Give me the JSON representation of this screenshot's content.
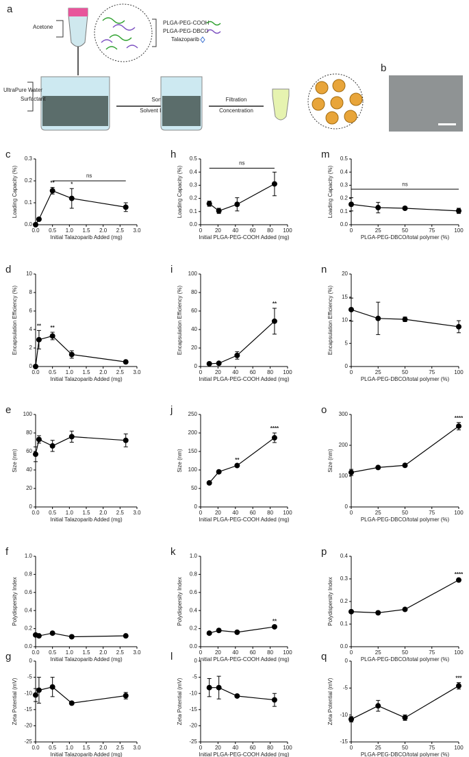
{
  "schematic": {
    "panel_a": "a",
    "panel_b": "b",
    "acetone": "Acetone",
    "polymer1": "PLGA-PEG-COOH",
    "polymer2": "PLGA-PEG-DBCO",
    "drug": "Talazoparib",
    "water": "UltraPure Water",
    "surfactant": "Surfactant",
    "step1a": "Sonication",
    "step1b": "Solvent Evaporation",
    "step2a": "Filtration",
    "step2b": "Concentration"
  },
  "chart_data": [
    {
      "type": "line",
      "panel": "c",
      "ylabel": "Loading Capacity (%)",
      "xlabel": "Initial Talazoparib Added (mg)",
      "x": [
        0,
        0.1,
        0.5,
        1.07,
        2.67
      ],
      "values": [
        0,
        0.025,
        0.155,
        0.12,
        0.08
      ],
      "errors": [
        0,
        0.005,
        0.015,
        0.045,
        0.02
      ],
      "xlim": [
        0,
        3
      ],
      "xticks": [
        {
          "value": 0,
          "label": "0.0"
        },
        {
          "value": 0.5,
          "label": "0.5"
        },
        {
          "value": 1,
          "label": "1.0"
        },
        {
          "value": 1.5,
          "label": "1.5"
        },
        {
          "value": 2,
          "label": "2.0"
        },
        {
          "value": 2.5,
          "label": "2.5"
        },
        {
          "value": 3,
          "label": "3.0"
        }
      ],
      "ylim": [
        0,
        0.3
      ],
      "yticks": [
        {
          "value": 0,
          "label": "0.0"
        },
        {
          "value": 0.1,
          "label": "0.1"
        },
        {
          "value": 0.2,
          "label": "0.2"
        },
        {
          "value": 0.3,
          "label": "0.3"
        }
      ],
      "annotations": [
        {
          "text": "**",
          "x": 0.5
        },
        {
          "text": "*",
          "x": 1.07
        }
      ],
      "bracket": {
        "text": "ns",
        "x": [
          0.5,
          2.67
        ],
        "y": 0.2
      }
    },
    {
      "type": "line",
      "panel": "d",
      "ylabel": "Encapsulation Efficiency (%)",
      "xlabel": "Initial Talazoparib Added (mg)",
      "x": [
        0,
        0.1,
        0.5,
        1.07,
        2.67
      ],
      "values": [
        0,
        2.9,
        3.3,
        1.3,
        0.5
      ],
      "errors": [
        0,
        1.0,
        0.4,
        0.4,
        0.1
      ],
      "xlim": [
        0,
        3
      ],
      "xticks": [
        {
          "value": 0,
          "label": "0.0"
        },
        {
          "value": 0.5,
          "label": "0.5"
        },
        {
          "value": 1,
          "label": "1.0"
        },
        {
          "value": 1.5,
          "label": "1.5"
        },
        {
          "value": 2,
          "label": "2.0"
        },
        {
          "value": 2.5,
          "label": "2.5"
        },
        {
          "value": 3,
          "label": "3.0"
        }
      ],
      "ylim": [
        0,
        10
      ],
      "yticks": [
        0,
        2,
        4,
        6,
        8,
        10
      ],
      "annotations": [
        {
          "text": "**",
          "x": 0.1
        },
        {
          "text": "**",
          "x": 0.5
        }
      ]
    },
    {
      "type": "line",
      "panel": "e",
      "ylabel": "Size (nm)",
      "xlabel": "Initial Talazoparib Added (mg)",
      "x": [
        0,
        0.1,
        0.5,
        1.07,
        2.67
      ],
      "values": [
        57,
        73,
        66,
        76,
        72
      ],
      "errors": [
        8,
        4,
        6,
        6,
        7
      ],
      "xlim": [
        0,
        3
      ],
      "xticks": [
        {
          "value": 0,
          "label": "0.0"
        },
        {
          "value": 0.5,
          "label": "0.5"
        },
        {
          "value": 1,
          "label": "1.0"
        },
        {
          "value": 1.5,
          "label": "1.5"
        },
        {
          "value": 2,
          "label": "2.0"
        },
        {
          "value": 2.5,
          "label": "2.5"
        },
        {
          "value": 3,
          "label": "3.0"
        }
      ],
      "ylim": [
        0,
        100
      ],
      "yticks": [
        0,
        20,
        40,
        60,
        80,
        100
      ]
    },
    {
      "type": "line",
      "panel": "f",
      "ylabel": "Polydispersity Index",
      "xlabel": "Initial Talazoparib Added (mg)",
      "x": [
        0,
        0.1,
        0.5,
        1.07,
        2.67
      ],
      "values": [
        0.13,
        0.12,
        0.15,
        0.11,
        0.12
      ],
      "errors": [
        0.005,
        0.005,
        0.005,
        0.005,
        0.005
      ],
      "xlim": [
        0,
        3
      ],
      "xticks": [
        {
          "value": 0,
          "label": "0.0"
        },
        {
          "value": 0.5,
          "label": "0.5"
        },
        {
          "value": 1,
          "label": "1.0"
        },
        {
          "value": 1.5,
          "label": "1.5"
        },
        {
          "value": 2,
          "label": "2.0"
        },
        {
          "value": 2.5,
          "label": "2.5"
        },
        {
          "value": 3,
          "label": "3.0"
        }
      ],
      "ylim": [
        0,
        1
      ],
      "yticks": [
        {
          "value": 0,
          "label": "0.0"
        },
        {
          "value": 0.2,
          "label": "0.2"
        },
        {
          "value": 0.4,
          "label": "0.4"
        },
        {
          "value": 0.6,
          "label": "0.6"
        },
        {
          "value": 0.8,
          "label": "0.8"
        },
        {
          "value": 1,
          "label": "1.0"
        }
      ]
    },
    {
      "type": "line",
      "panel": "g",
      "ylabel": "Zeta Potential (mV)",
      "xlabel": "Initial Talazoparib Added (mg)",
      "x": [
        0,
        0.1,
        0.5,
        1.07,
        2.67
      ],
      "values": [
        -10.5,
        -9,
        -8,
        -13,
        -10.7
      ],
      "errors": [
        2,
        4,
        3,
        0.3,
        1
      ],
      "xlim": [
        0,
        3
      ],
      "xticks": [
        {
          "value": 0,
          "label": "0.0"
        },
        {
          "value": 0.5,
          "label": "0.5"
        },
        {
          "value": 1,
          "label": "1.0"
        },
        {
          "value": 1.5,
          "label": "1.5"
        },
        {
          "value": 2,
          "label": "2.0"
        },
        {
          "value": 2.5,
          "label": "2.5"
        },
        {
          "value": 3,
          "label": "3.0"
        }
      ],
      "ylim": [
        -25,
        0
      ],
      "yticks": [
        0,
        -5,
        -10,
        -15,
        -20,
        -25
      ]
    },
    {
      "type": "line",
      "panel": "h",
      "ylabel": "Loading Capacity (%)",
      "xlabel": "Initial PLGA-PEG-COOH Added (mg)",
      "x": [
        10,
        21,
        42,
        85
      ],
      "values": [
        0.16,
        0.105,
        0.155,
        0.31
      ],
      "errors": [
        0.02,
        0.02,
        0.05,
        0.09
      ],
      "xlim": [
        0,
        100
      ],
      "xticks": [
        0,
        20,
        40,
        60,
        80,
        100
      ],
      "ylim": [
        0,
        0.5
      ],
      "yticks": [
        {
          "value": 0,
          "label": "0.0"
        },
        0.1,
        0.2,
        0.3,
        0.4,
        0.5
      ],
      "bracket": {
        "text": "ns",
        "x": [
          10,
          85
        ],
        "y": 0.43
      }
    },
    {
      "type": "line",
      "panel": "i",
      "ylabel": "Encapsulation Efficiency (%)",
      "xlabel": "Initial PLGA-PEG-COOH Added (mg)",
      "x": [
        10,
        21,
        42,
        85
      ],
      "values": [
        3,
        3.5,
        12,
        49
      ],
      "errors": [
        1,
        1,
        4,
        14
      ],
      "xlim": [
        0,
        100
      ],
      "xticks": [
        0,
        20,
        40,
        60,
        80,
        100
      ],
      "ylim": [
        0,
        100
      ],
      "yticks": [
        0,
        20,
        40,
        60,
        80,
        100
      ],
      "annotations": [
        {
          "text": "**",
          "x": 85
        }
      ]
    },
    {
      "type": "line",
      "panel": "j",
      "ylabel": "Size (nm)",
      "xlabel": "Initial PLGA-PEG-COOH Added (mg)",
      "x": [
        10,
        21,
        42,
        85
      ],
      "values": [
        65,
        95,
        112,
        187
      ],
      "errors": [
        3,
        3,
        3,
        13
      ],
      "xlim": [
        0,
        100
      ],
      "xticks": [
        0,
        20,
        40,
        60,
        80,
        100
      ],
      "ylim": [
        0,
        250
      ],
      "yticks": [
        0,
        50,
        100,
        150,
        200,
        250
      ],
      "annotations": [
        {
          "text": "**",
          "x": 42
        },
        {
          "text": "****",
          "x": 85
        }
      ]
    },
    {
      "type": "line",
      "panel": "k",
      "ylabel": "Polydispersity Index",
      "xlabel": "Initial PLGA-PEG-COOH Added (mg)",
      "x": [
        10,
        21,
        42,
        85
      ],
      "values": [
        0.15,
        0.18,
        0.16,
        0.22
      ],
      "errors": [
        0.005,
        0.005,
        0.005,
        0.01
      ],
      "xlim": [
        0,
        100
      ],
      "xticks": [
        0,
        20,
        40,
        60,
        80,
        100
      ],
      "ylim": [
        0,
        1
      ],
      "yticks": [
        {
          "value": 0,
          "label": "0.0"
        },
        {
          "value": 0.2,
          "label": "0.2"
        },
        {
          "value": 0.4,
          "label": "0.4"
        },
        {
          "value": 0.6,
          "label": "0.6"
        },
        {
          "value": 0.8,
          "label": "0.8"
        },
        {
          "value": 1,
          "label": "1.0"
        }
      ],
      "annotations": [
        {
          "text": "**",
          "x": 85
        }
      ]
    },
    {
      "type": "line",
      "panel": "l",
      "ylabel": "Zeta Potential (mV)",
      "xlabel": "Initial PLGA-PEG-COOH Added (mg)",
      "x": [
        10,
        21,
        42,
        85
      ],
      "values": [
        -8.2,
        -8.2,
        -10.8,
        -12
      ],
      "errors": [
        2.8,
        3.5,
        0.3,
        2
      ],
      "xlim": [
        0,
        100
      ],
      "xticks": [
        0,
        20,
        40,
        60,
        80,
        100
      ],
      "ylim": [
        -25,
        0
      ],
      "yticks": [
        0,
        -5,
        -10,
        -15,
        -20,
        -25
      ]
    },
    {
      "type": "line",
      "panel": "m",
      "ylabel": "Loading Capacity (%)",
      "xlabel": "PLGA-PEG-DBCO/total polymer (%)",
      "x": [
        0,
        25,
        50,
        100
      ],
      "values": [
        0.155,
        0.13,
        0.125,
        0.105
      ],
      "errors": [
        0.05,
        0.04,
        0.01,
        0.02
      ],
      "xlim": [
        0,
        100
      ],
      "xticks": [
        0,
        25,
        50,
        75,
        100
      ],
      "ylim": [
        0,
        0.5
      ],
      "yticks": [
        {
          "value": 0,
          "label": "0.0"
        },
        0.1,
        0.2,
        0.3,
        0.4,
        0.5
      ],
      "bracket": {
        "text": "ns",
        "x": [
          0,
          100
        ],
        "y": 0.27
      }
    },
    {
      "type": "line",
      "panel": "n",
      "ylabel": "Encapsulation Efficiency (%)",
      "xlabel": "PLGA-PEG-DBCO/total polymer (%)",
      "x": [
        0,
        25,
        50,
        100
      ],
      "values": [
        12.3,
        10.4,
        10.2,
        8.6
      ],
      "errors": [
        2.5,
        3.5,
        0.5,
        1.3
      ],
      "xlim": [
        0,
        100
      ],
      "xticks": [
        0,
        25,
        50,
        75,
        100
      ],
      "ylim": [
        0,
        20
      ],
      "yticks": [
        0,
        5,
        10,
        15,
        20
      ]
    },
    {
      "type": "line",
      "panel": "o",
      "ylabel": "Size (nm)",
      "xlabel": "PLGA-PEG-DBCO/total polymer (%)",
      "x": [
        0,
        25,
        50,
        100
      ],
      "values": [
        112,
        128,
        135,
        262
      ],
      "errors": [
        10,
        5,
        3,
        12
      ],
      "xlim": [
        0,
        100
      ],
      "xticks": [
        0,
        25,
        50,
        75,
        100
      ],
      "ylim": [
        0,
        300
      ],
      "yticks": [
        0,
        100,
        200,
        300
      ],
      "annotations": [
        {
          "text": "****",
          "x": 100
        }
      ]
    },
    {
      "type": "line",
      "panel": "p",
      "ylabel": "Polydispersity Index",
      "xlabel": "PLGA-PEG-DBCO/total polymer (%)",
      "x": [
        0,
        25,
        50,
        100
      ],
      "values": [
        0.155,
        0.15,
        0.165,
        0.295
      ],
      "errors": [
        0.003,
        0.003,
        0.003,
        0.005
      ],
      "xlim": [
        0,
        100
      ],
      "xticks": [
        0,
        25,
        50,
        75,
        100
      ],
      "ylim": [
        0,
        0.4
      ],
      "yticks": [
        {
          "value": 0,
          "label": "0.0"
        },
        0.1,
        0.2,
        0.3,
        0.4
      ],
      "annotations": [
        {
          "text": "****",
          "x": 100
        }
      ]
    },
    {
      "type": "line",
      "panel": "q",
      "ylabel": "Zeta Potential (mV)",
      "xlabel": "PLGA-PEG-DBCO/total polymer (%)",
      "x": [
        0,
        25,
        50,
        100
      ],
      "values": [
        -10.8,
        -8.3,
        -10.5,
        -4.6
      ],
      "errors": [
        0.5,
        1,
        0.5,
        0.6
      ],
      "xlim": [
        0,
        100
      ],
      "xticks": [
        0,
        25,
        50,
        75,
        100
      ],
      "ylim": [
        -15,
        0
      ],
      "yticks": [
        -15,
        -10,
        -5,
        0
      ],
      "annotations": [
        {
          "text": "***",
          "x": 100
        }
      ]
    }
  ]
}
